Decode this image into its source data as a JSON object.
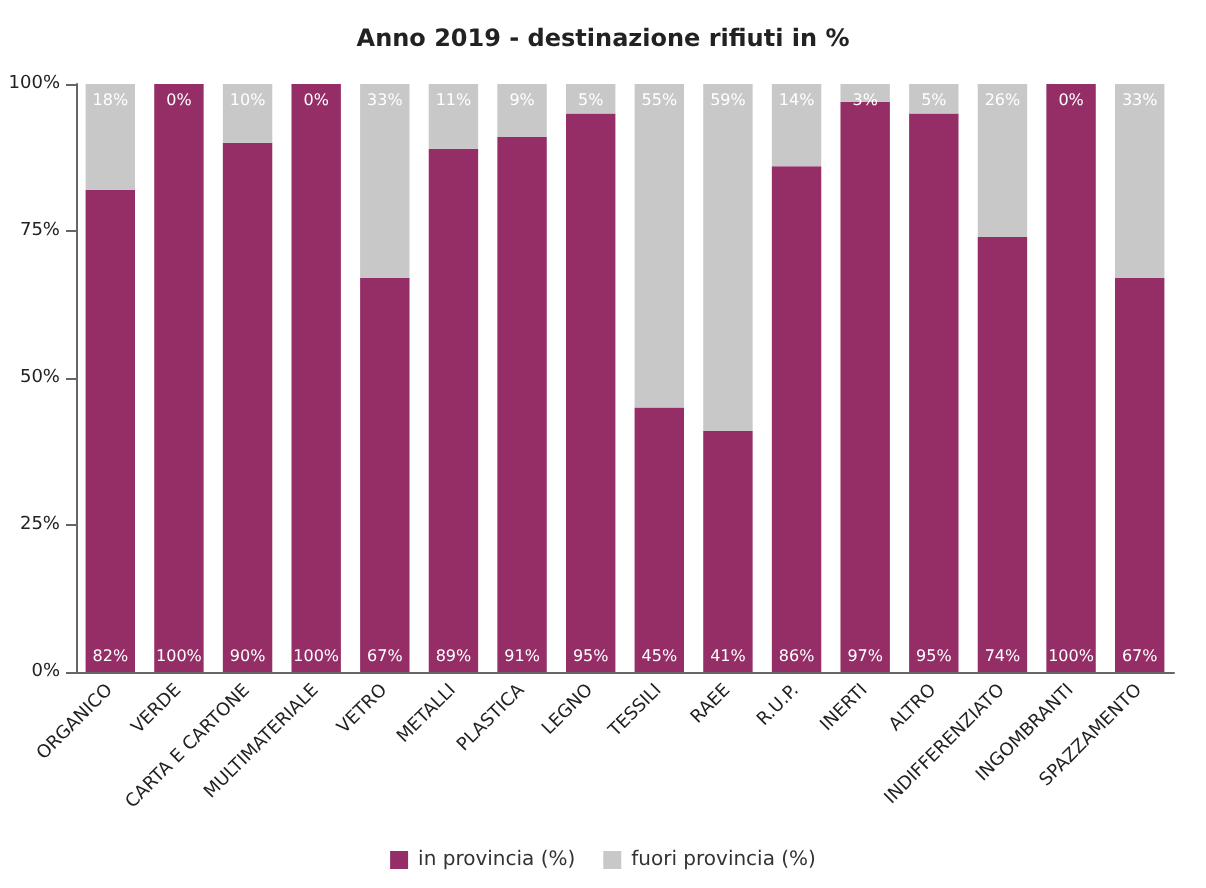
{
  "chart_data": {
    "type": "bar",
    "title": "Anno 2019 - destinazione rifiuti in %",
    "stacked": true,
    "legend": "bottom",
    "grid": false,
    "categories": [
      "ORGANICO",
      "VERDE",
      "CARTA E CARTONE",
      "MULTIMATERIALE",
      "VETRO",
      "METALLI",
      "PLASTICA",
      "LEGNO",
      "TESSILI",
      "RAEE",
      "R.U.P.",
      "INERTI",
      "ALTRO",
      "INDIFFERENZIATO",
      "INGOMBRANTI",
      "SPAZZAMENTO"
    ],
    "ylim": [
      0,
      100
    ],
    "yticks": [
      {
        "value": 0,
        "label": "0%"
      },
      {
        "value": 25,
        "label": "25%"
      },
      {
        "value": 50,
        "label": "50%"
      },
      {
        "value": 75,
        "label": "75%"
      },
      {
        "value": 100,
        "label": "100%"
      }
    ],
    "series": [
      {
        "name": "in provincia (%)",
        "color": "#952d67",
        "values": [
          82,
          100,
          90,
          100,
          67,
          89,
          91,
          95,
          45,
          41,
          86,
          97,
          95,
          74,
          100,
          67
        ],
        "value_labels": [
          "82%",
          "100%",
          "90%",
          "100%",
          "67%",
          "89%",
          "91%",
          "95%",
          "45%",
          "41%",
          "86%",
          "97%",
          "95%",
          "74%",
          "100%",
          "67%"
        ]
      },
      {
        "name": "fuori provincia (%)",
        "color": "#c8c8c8",
        "values": [
          18,
          0,
          10,
          0,
          33,
          11,
          9,
          5,
          55,
          59,
          14,
          3,
          5,
          26,
          0,
          33
        ],
        "value_labels": [
          "18%",
          "0%",
          "10%",
          "0%",
          "33%",
          "11%",
          "9%",
          "5%",
          "55%",
          "59%",
          "14%",
          "3%",
          "5%",
          "26%",
          "0%",
          "33%"
        ]
      }
    ]
  }
}
